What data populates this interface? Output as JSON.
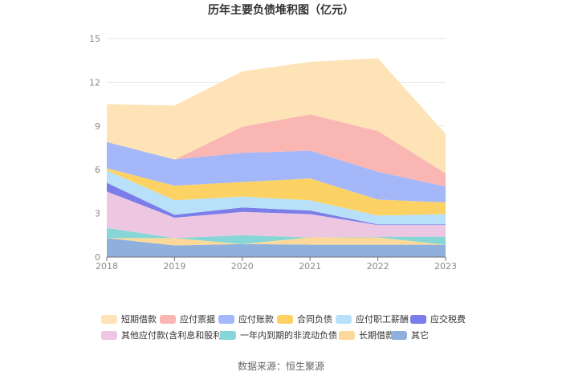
{
  "chart_data": {
    "type": "area",
    "stacked": true,
    "title": "历年主要负债堆积图（亿元）",
    "x": [
      "2018",
      "2019",
      "2020",
      "2021",
      "2022",
      "2023"
    ],
    "ylim": [
      0,
      15
    ],
    "yticks": [
      0,
      3,
      6,
      9,
      12,
      15
    ],
    "grid": true,
    "legend_position": "bottom",
    "series": [
      {
        "name": "其它",
        "color": "#8fb0dc",
        "values": [
          1.3,
          0.8,
          0.9,
          0.85,
          0.85,
          0.85
        ]
      },
      {
        "name": "长期借款",
        "color": "#fcd99b",
        "values": [
          0.0,
          0.5,
          0.0,
          0.5,
          0.5,
          0.0
        ]
      },
      {
        "name": "一年内到期的非流动负债",
        "color": "#86d5d7",
        "values": [
          0.7,
          0.0,
          0.6,
          0.0,
          0.05,
          0.55
        ]
      },
      {
        "name": "其他应付款(含利息和股利)",
        "color": "#edc7e2",
        "values": [
          2.5,
          1.4,
          1.6,
          1.6,
          0.8,
          0.8
        ]
      },
      {
        "name": "应交税费",
        "color": "#7b7de8",
        "values": [
          0.6,
          0.2,
          0.3,
          0.25,
          0.05,
          0.05
        ]
      },
      {
        "name": "应付职工薪酬",
        "color": "#b8e1f9",
        "values": [
          0.85,
          1.0,
          0.75,
          0.7,
          0.6,
          0.7
        ]
      },
      {
        "name": "合同负债",
        "color": "#fdd265",
        "values": [
          0.15,
          1.0,
          1.0,
          1.5,
          1.1,
          0.8
        ]
      },
      {
        "name": "应付账款",
        "color": "#a4b7f8",
        "values": [
          1.8,
          1.8,
          2.0,
          1.9,
          1.9,
          1.1
        ]
      },
      {
        "name": "应付票据",
        "color": "#fab6b3",
        "values": [
          0.0,
          0.0,
          1.8,
          2.5,
          2.8,
          0.9
        ]
      },
      {
        "name": "短期借款",
        "color": "#fde3b6",
        "values": [
          2.6,
          3.7,
          3.8,
          3.6,
          5.0,
          2.7
        ]
      }
    ],
    "legend_order": [
      "短期借款",
      "应付票据",
      "应付账款",
      "合同负债",
      "应付职工薪酬",
      "应交税费",
      "其他应付款(含利息和股利)",
      "一年内到期的非流动负债",
      "长期借款",
      "其它"
    ]
  },
  "source_label": "数据来源：恒生聚源"
}
